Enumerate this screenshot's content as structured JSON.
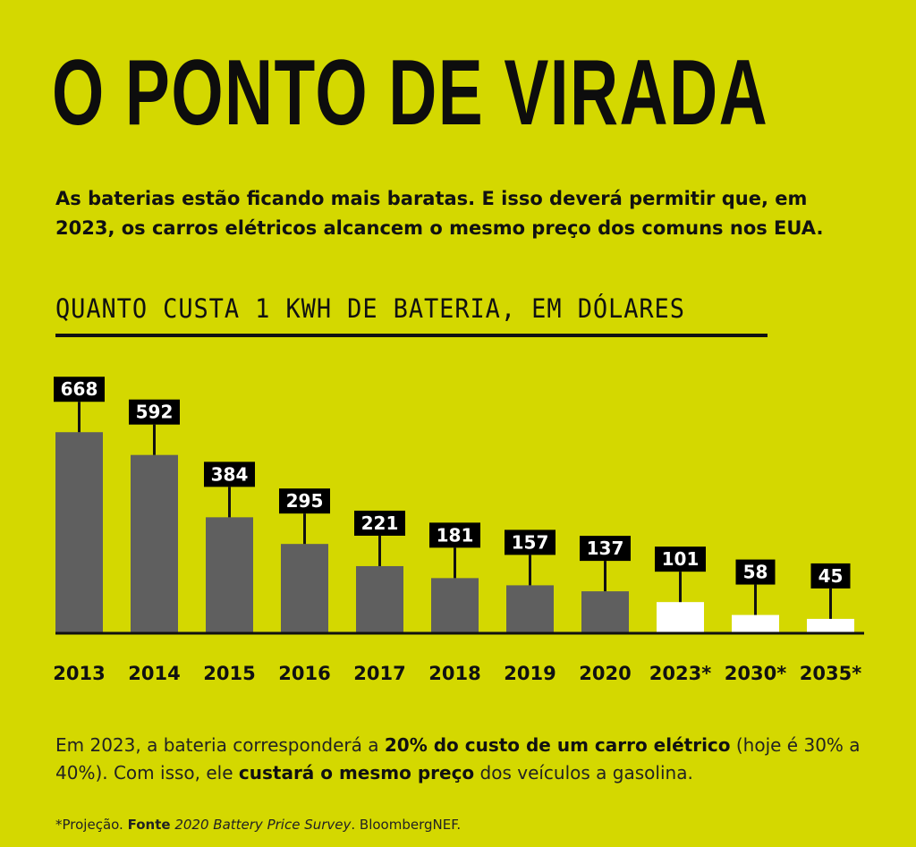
{
  "title": "O PONTO DE VIRADA",
  "subtitle_line1": "As baterias estão ficando mais baratas. E isso deverá permitir que, em",
  "subtitle_line2": "2023, os carros elétricos alcancem o mesmo preço dos comuns nos EUA.",
  "colors": {
    "background": "#d4d800",
    "historical_bar": "#5f5f5f",
    "projection_bar": "#ffffff",
    "label_box": "#000000"
  },
  "chart_data": {
    "type": "bar",
    "title": "QUANTO CUSTA 1 KWH DE BATERIA, EM DÓLARES",
    "categories": [
      "2013",
      "2014",
      "2015",
      "2016",
      "2017",
      "2018",
      "2019",
      "2020",
      "2023*",
      "2030*",
      "2035*"
    ],
    "values": [
      668,
      592,
      384,
      295,
      221,
      181,
      157,
      137,
      101,
      58,
      45
    ],
    "value_labels": [
      "668",
      "592",
      "384",
      "295",
      "221",
      "181",
      "157",
      "137",
      "101",
      "58",
      "45"
    ],
    "projected": [
      false,
      false,
      false,
      false,
      false,
      false,
      false,
      false,
      true,
      true,
      true
    ],
    "xlabel": "",
    "ylabel": "",
    "ylim": [
      0,
      700
    ],
    "grid": false
  },
  "note": {
    "part1": "Em 2023, a bateria corresponderá a ",
    "bold1": "20% do custo de um carro elétrico",
    "part2": " (hoje é 30% a 40%). Com isso, ele ",
    "bold2": "custará o mesmo preço",
    "part3": " dos veículos a gasolina."
  },
  "source": {
    "prefix": "*Projeção. ",
    "label": "Fonte",
    "title": "2020 Battery Price Survey",
    "suffix": ". BloombergNEF."
  }
}
